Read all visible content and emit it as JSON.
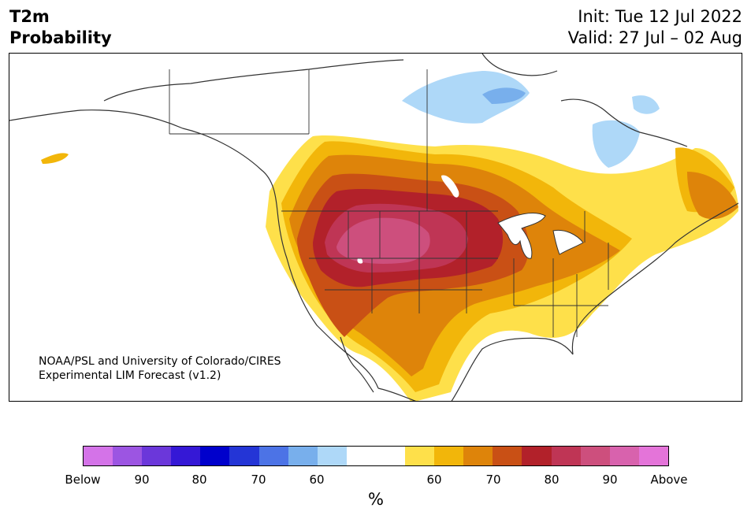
{
  "header": {
    "title_line1": "T2m",
    "title_line2": "Probability",
    "init": "Init: Tue 12 Jul 2022",
    "valid": "Valid: 27 Jul – 02 Aug"
  },
  "credit": {
    "line1": "NOAA/PSL and University of Colorado/CIRES",
    "line2": "Experimental LIM Forecast (v1.2)"
  },
  "colorbar": {
    "unit": "%",
    "colors": [
      "#d473e8",
      "#9c55e2",
      "#6b37da",
      "#3518d6",
      "#0000cc",
      "#2435d6",
      "#4c73e6",
      "#78afec",
      "#aed8f8",
      "#ffffff",
      "#ffffff",
      "#fee04a",
      "#f2b60a",
      "#de840a",
      "#c95015",
      "#b2212a",
      "#bf3555",
      "#cd4f7d",
      "#d862ad",
      "#e474d9"
    ],
    "ticks": [
      {
        "label": "Below"
      },
      {
        "label": "90"
      },
      {
        "label": "80"
      },
      {
        "label": "70"
      },
      {
        "label": "60"
      },
      {
        "label": "60"
      },
      {
        "label": "70"
      },
      {
        "label": "80"
      },
      {
        "label": "90"
      },
      {
        "label": "Above"
      }
    ]
  },
  "map_legend_colors": {
    "warm_60": "#fee04a",
    "warm_65": "#f2b60a",
    "warm_70": "#de840a",
    "warm_75": "#c95015",
    "warm_80": "#b2212a",
    "warm_85": "#bf3555",
    "warm_90": "#cd4f7d",
    "cold_60": "#aed8f8",
    "cold_65": "#78afec"
  }
}
